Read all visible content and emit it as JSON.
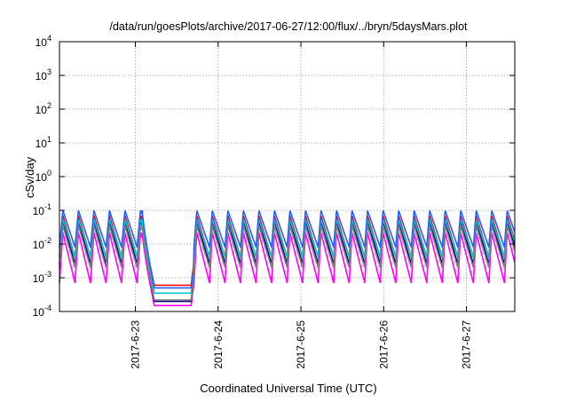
{
  "chart_data": {
    "type": "line",
    "title": "/data/run/goesPlots/archive/2017-06-27/12:00/flux/../bryn/5daysMars.plot",
    "xlabel": "Coordinated Universal Time (UTC)",
    "ylabel": "cSv/day",
    "yscale": "log",
    "ylim": [
      0.0001,
      10000
    ],
    "xlim": [
      "2017-06-22 02:00",
      "2017-06-27 14:00"
    ],
    "x_ticks": [
      "2017-6-23",
      "2017-6-24",
      "2017-6-25",
      "2017-6-26",
      "2017-6-27"
    ],
    "y_ticks": [
      {
        "base": "10",
        "exp": "-4"
      },
      {
        "base": "10",
        "exp": "-3"
      },
      {
        "base": "10",
        "exp": "-2"
      },
      {
        "base": "10",
        "exp": "-1"
      },
      {
        "base": "10",
        "exp": "0"
      },
      {
        "base": "10",
        "exp": "1"
      },
      {
        "base": "10",
        "exp": "2"
      },
      {
        "base": "10",
        "exp": "3"
      },
      {
        "base": "10",
        "exp": "4"
      }
    ],
    "grid": true,
    "legend": "none",
    "sawtooth_period_hours": 4.5,
    "gap_start": "2017-06-23 02:00",
    "gap_end": "2017-06-23 17:00",
    "series": [
      {
        "color": "#ff00ff",
        "peak": 0.022,
        "trough": 0.0007,
        "gap_level": 0.00015
      },
      {
        "color": "#ff0000",
        "peak": 0.07,
        "trough": 0.004,
        "gap_level": 0.0006
      },
      {
        "color": "#000080",
        "peak": 0.05,
        "trough": 0.0025,
        "gap_level": 0.0002
      },
      {
        "color": "#00c8c8",
        "peak": 0.055,
        "trough": 0.004,
        "gap_level": 0.00035
      },
      {
        "color": "#2060ff",
        "peak": 0.1,
        "trough": 0.008,
        "gap_level": 0.0005
      },
      {
        "color": "#808080",
        "peak": 0.035,
        "trough": 0.002,
        "gap_level": 0.00022
      }
    ]
  }
}
